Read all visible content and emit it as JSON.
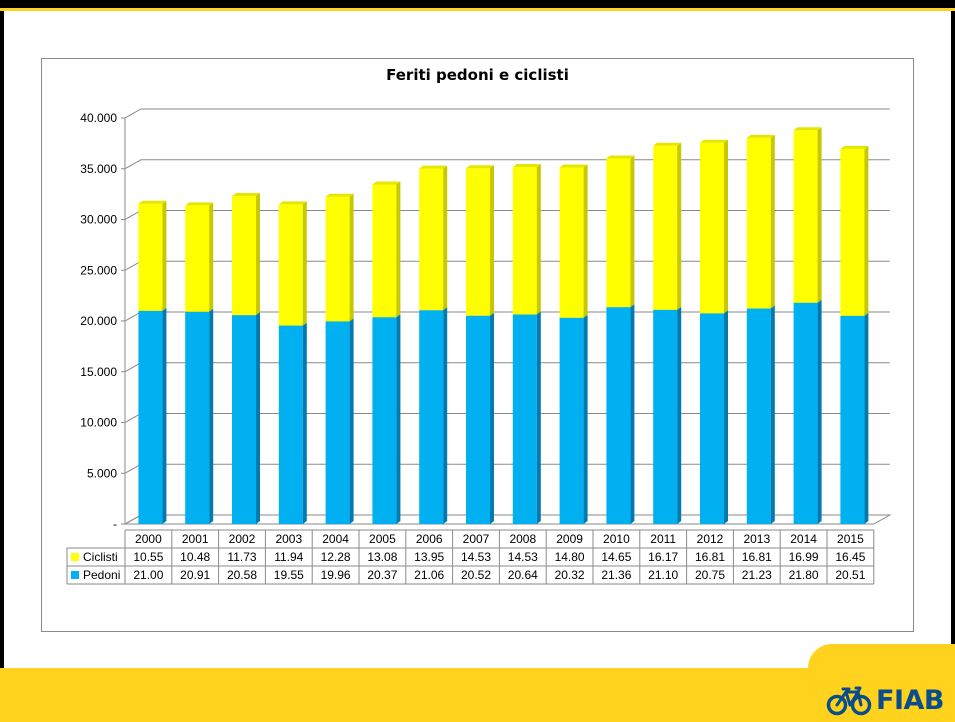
{
  "colors": {
    "ciclisti": "#ffff00",
    "ciclisti_side": "#c8c800",
    "ciclisti_top": "#e6e600",
    "pedoni": "#00b0f0",
    "pedoni_side": "#007ab0",
    "pedoni_top": "#0096d0",
    "brand_yellow": "#ffd21e",
    "brand_blue": "#0a4d8c"
  },
  "logo": {
    "text": "FIAB",
    "icon": "bicycle-icon"
  },
  "chart_data": {
    "type": "bar",
    "stacked": true,
    "three_d": true,
    "title": "Feriti pedoni e ciclisti",
    "categories": [
      "2000",
      "2001",
      "2002",
      "2003",
      "2004",
      "2005",
      "2006",
      "2007",
      "2008",
      "2009",
      "2010",
      "2011",
      "2012",
      "2013",
      "2014",
      "2015"
    ],
    "ylim": [
      0,
      40000
    ],
    "yticks": [
      0,
      5000,
      10000,
      15000,
      20000,
      25000,
      30000,
      35000,
      40000
    ],
    "ytick_labels": [
      "-",
      "5.000",
      "10.000",
      "15.000",
      "20.000",
      "25.000",
      "30.000",
      "35.000",
      "40.000"
    ],
    "grid": true,
    "legend": "data-table",
    "series": [
      {
        "name": "Pedoni",
        "values": [
          21000,
          20910,
          20580,
          19550,
          19960,
          20370,
          21060,
          20520,
          20640,
          20320,
          21360,
          21100,
          20750,
          21230,
          21800,
          20510
        ],
        "table_labels": [
          "21.00",
          "20.91",
          "20.58",
          "19.55",
          "19.96",
          "20.37",
          "21.06",
          "20.52",
          "20.64",
          "20.32",
          "21.36",
          "21.10",
          "20.75",
          "21.23",
          "21.80",
          "20.51"
        ]
      },
      {
        "name": "Ciclisti",
        "values": [
          10550,
          10480,
          11730,
          11940,
          12280,
          13080,
          13950,
          14530,
          14530,
          14800,
          14650,
          16170,
          16810,
          16810,
          16990,
          16450
        ],
        "table_labels": [
          "10.55",
          "10.48",
          "11.73",
          "11.94",
          "12.28",
          "13.08",
          "13.95",
          "14.53",
          "14.53",
          "14.80",
          "14.65",
          "16.17",
          "16.81",
          "16.81",
          "16.99",
          "16.45"
        ]
      }
    ]
  }
}
